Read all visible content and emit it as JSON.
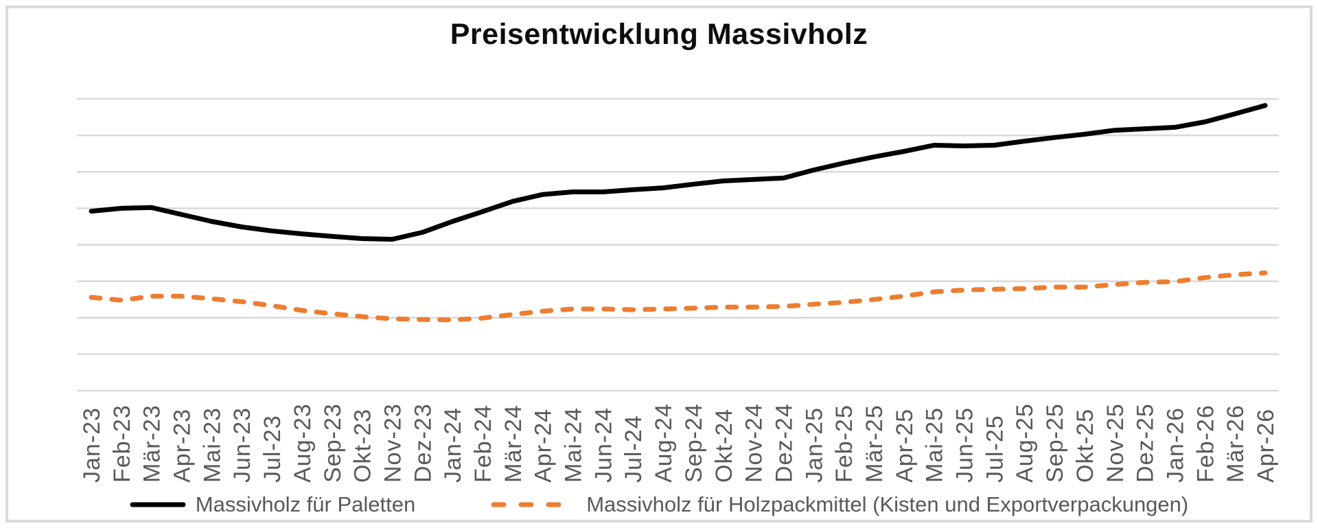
{
  "title": "Preisentwicklung Massivholz",
  "colors": {
    "series_paletten": "#000000",
    "series_holzpackmittel": "#ED7D31",
    "gridline": "#D9D9D9",
    "frame_border": "#D9D9D9",
    "axis_text": "#595959",
    "legend_text": "#595959",
    "title_text": "#0D0D0D",
    "background": "#FFFFFF"
  },
  "legend": [
    {
      "label": "Massivholz für Paletten",
      "style": "solid",
      "color": "#000000"
    },
    {
      "label": "Massivholz für Holzpackmittel (Kisten und Exportverpackungen)",
      "style": "dashed",
      "color": "#ED7D31"
    }
  ],
  "chart_data": {
    "type": "line",
    "title": "Preisentwicklung Massivholz",
    "xlabel": "",
    "ylabel": "",
    "grid": true,
    "legend_position": "bottom",
    "x": [
      "Jan-23",
      "Feb-23",
      "Mär-23",
      "Apr-23",
      "Mai-23",
      "Jun-23",
      "Jul-23",
      "Aug-23",
      "Sep-23",
      "Okt-23",
      "Nov-23",
      "Dez-23",
      "Jan-24",
      "Feb-24",
      "Mär-24",
      "Apr-24",
      "Mai-24",
      "Jun-24",
      "Jul-24",
      "Aug-24",
      "Sep-24",
      "Okt-24",
      "Nov-24",
      "Dez-24",
      "Jan-25",
      "Feb-25",
      "Mär-25",
      "Apr-25",
      "Mai-25",
      "Jun-25",
      "Jul-25",
      "Aug-25",
      "Sep-25",
      "Okt-25",
      "Nov-25",
      "Dez-25",
      "Jan-26",
      "Feb-26",
      "Mär-26",
      "Apr-26"
    ],
    "y_axis": {
      "tick_labels_visible": false,
      "gridline_count": 9,
      "value_scale": "gridline units 0-8 (no numeric labels shown in chart)",
      "ylim": [
        0,
        8.5
      ]
    },
    "series": [
      {
        "name": "Massivholz für Paletten",
        "color": "#000000",
        "line_style": "solid",
        "values": [
          4.92,
          5.0,
          5.02,
          4.83,
          4.64,
          4.49,
          4.38,
          4.3,
          4.23,
          4.17,
          4.15,
          4.34,
          4.64,
          4.91,
          5.19,
          5.38,
          5.45,
          5.45,
          5.51,
          5.56,
          5.66,
          5.75,
          5.79,
          5.83,
          6.05,
          6.24,
          6.41,
          6.56,
          6.73,
          6.71,
          6.73,
          6.84,
          6.94,
          7.03,
          7.14,
          7.18,
          7.22,
          7.37,
          7.59,
          7.82
        ]
      },
      {
        "name": "Massivholz für Holzpackmittel (Kisten und Exportverpackungen)",
        "color": "#ED7D31",
        "line_style": "dashed",
        "values": [
          2.56,
          2.48,
          2.59,
          2.59,
          2.52,
          2.44,
          2.33,
          2.2,
          2.11,
          2.03,
          1.97,
          1.95,
          1.94,
          1.99,
          2.09,
          2.18,
          2.24,
          2.24,
          2.22,
          2.24,
          2.26,
          2.29,
          2.29,
          2.31,
          2.37,
          2.42,
          2.5,
          2.59,
          2.71,
          2.76,
          2.78,
          2.8,
          2.84,
          2.84,
          2.91,
          2.97,
          2.99,
          3.1,
          3.18,
          3.23
        ]
      }
    ]
  }
}
